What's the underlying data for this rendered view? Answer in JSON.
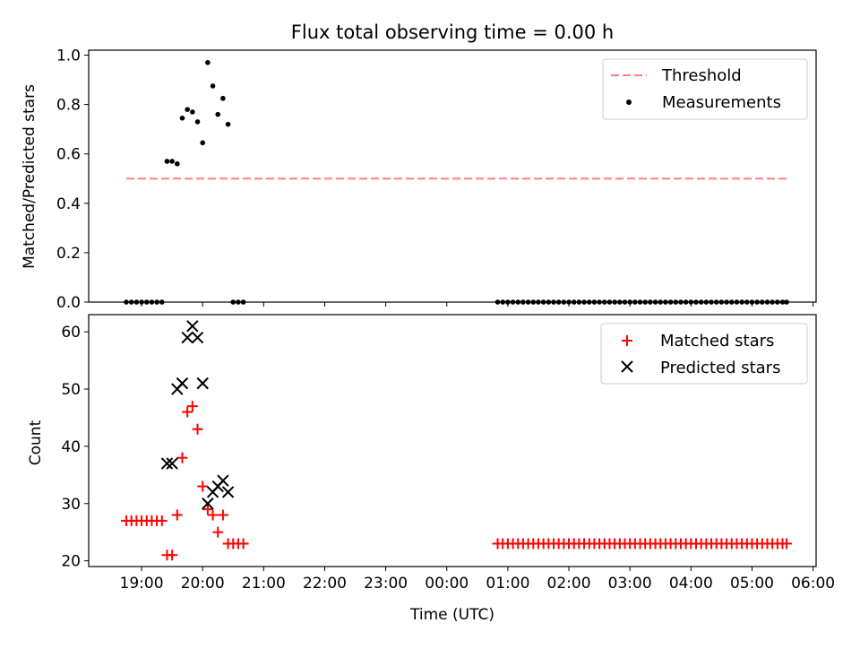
{
  "chart_data": [
    {
      "type": "scatter",
      "title": "Flux total observing time = 0.00 h",
      "xlabel": "",
      "ylabel": "Matched/Predicted stars",
      "xlim": [
        "18:08",
        "06:03"
      ],
      "ylim": [
        0,
        1.02
      ],
      "yticks": [
        0.0,
        0.2,
        0.4,
        0.6,
        0.8,
        1.0
      ],
      "ytick_labels": [
        "0.0",
        "0.2",
        "0.4",
        "0.6",
        "0.8",
        "1.0"
      ],
      "grid": false,
      "legend_position": "top-right",
      "series": [
        {
          "name": "Threshold",
          "kind": "dashed-line",
          "color": "#ff7f7f",
          "x": [
            "18:45",
            "05:34"
          ],
          "y": [
            0.5,
            0.5
          ]
        },
        {
          "name": "Measurements",
          "kind": "dot",
          "color": "#000000",
          "x": [
            "18:45",
            "18:50",
            "18:55",
            "19:00",
            "19:05",
            "19:10",
            "19:15",
            "19:20",
            "19:25",
            "19:30",
            "19:35",
            "19:40",
            "19:45",
            "19:50",
            "19:55",
            "20:00",
            "20:05",
            "20:10",
            "20:15",
            "20:20",
            "20:25",
            "20:30",
            "20:35",
            "20:40",
            "00:50",
            "00:55",
            "01:00",
            "01:05",
            "01:10",
            "01:15",
            "01:20",
            "01:25",
            "01:30",
            "01:35",
            "01:40",
            "01:45",
            "01:50",
            "01:55",
            "02:00",
            "02:05",
            "02:10",
            "02:15",
            "02:20",
            "02:25",
            "02:30",
            "02:35",
            "02:40",
            "02:45",
            "02:50",
            "02:55",
            "03:00",
            "03:05",
            "03:10",
            "03:15",
            "03:20",
            "03:25",
            "03:30",
            "03:35",
            "03:40",
            "03:45",
            "03:50",
            "03:55",
            "04:00",
            "04:05",
            "04:10",
            "04:15",
            "04:20",
            "04:25",
            "04:30",
            "04:35",
            "04:40",
            "04:45",
            "04:50",
            "04:55",
            "05:00",
            "05:05",
            "05:10",
            "05:15",
            "05:20",
            "05:25",
            "05:30",
            "05:34"
          ],
          "y": [
            0,
            0,
            0,
            0,
            0,
            0,
            0,
            0,
            0.57,
            0.57,
            0.56,
            0.745,
            0.78,
            0.77,
            0.73,
            0.645,
            0.97,
            0.875,
            0.76,
            0.825,
            0.72,
            0,
            0,
            0,
            0,
            0,
            0,
            0,
            0,
            0,
            0,
            0,
            0,
            0,
            0,
            0,
            0,
            0,
            0,
            0,
            0,
            0,
            0,
            0,
            0,
            0,
            0,
            0,
            0,
            0,
            0,
            0,
            0,
            0,
            0,
            0,
            0,
            0,
            0,
            0,
            0,
            0,
            0,
            0,
            0,
            0,
            0,
            0,
            0,
            0,
            0,
            0,
            0,
            0,
            0,
            0,
            0,
            0,
            0,
            0,
            0,
            0
          ]
        }
      ]
    },
    {
      "type": "scatter",
      "title": "",
      "xlabel": "Time (UTC)",
      "ylabel": "Count",
      "xlim": [
        "18:08",
        "06:03"
      ],
      "ylim": [
        19,
        63
      ],
      "yticks": [
        20,
        30,
        40,
        50,
        60
      ],
      "ytick_labels": [
        "20",
        "30",
        "40",
        "50",
        "60"
      ],
      "xticks": [
        "19:00",
        "20:00",
        "21:00",
        "22:00",
        "23:00",
        "00:00",
        "01:00",
        "02:00",
        "03:00",
        "04:00",
        "05:00",
        "06:00"
      ],
      "grid": false,
      "legend_position": "top-right",
      "series": [
        {
          "name": "Matched stars",
          "kind": "plus",
          "color": "#ff0000",
          "x": [
            "18:45",
            "18:50",
            "18:55",
            "19:00",
            "19:05",
            "19:10",
            "19:15",
            "19:20",
            "19:25",
            "19:30",
            "19:35",
            "19:40",
            "19:45",
            "19:50",
            "19:55",
            "20:00",
            "20:05",
            "20:10",
            "20:15",
            "20:20",
            "20:25",
            "20:30",
            "20:35",
            "20:40",
            "00:50",
            "00:55",
            "01:00",
            "01:05",
            "01:10",
            "01:15",
            "01:20",
            "01:25",
            "01:30",
            "01:35",
            "01:40",
            "01:45",
            "01:50",
            "01:55",
            "02:00",
            "02:05",
            "02:10",
            "02:15",
            "02:20",
            "02:25",
            "02:30",
            "02:35",
            "02:40",
            "02:45",
            "02:50",
            "02:55",
            "03:00",
            "03:05",
            "03:10",
            "03:15",
            "03:20",
            "03:25",
            "03:30",
            "03:35",
            "03:40",
            "03:45",
            "03:50",
            "03:55",
            "04:00",
            "04:05",
            "04:10",
            "04:15",
            "04:20",
            "04:25",
            "04:30",
            "04:35",
            "04:40",
            "04:45",
            "04:50",
            "04:55",
            "05:00",
            "05:05",
            "05:10",
            "05:15",
            "05:20",
            "05:25",
            "05:30",
            "05:34"
          ],
          "y": [
            27,
            27,
            27,
            27,
            27,
            27,
            27,
            27,
            21,
            21,
            28,
            38,
            46,
            47,
            43,
            33,
            29,
            28,
            25,
            28,
            23,
            23,
            23,
            23,
            23,
            23,
            23,
            23,
            23,
            23,
            23,
            23,
            23,
            23,
            23,
            23,
            23,
            23,
            23,
            23,
            23,
            23,
            23,
            23,
            23,
            23,
            23,
            23,
            23,
            23,
            23,
            23,
            23,
            23,
            23,
            23,
            23,
            23,
            23,
            23,
            23,
            23,
            23,
            23,
            23,
            23,
            23,
            23,
            23,
            23,
            23,
            23,
            23,
            23,
            23,
            23,
            23,
            23,
            23,
            23,
            23,
            23
          ]
        },
        {
          "name": "Predicted stars",
          "kind": "x",
          "color": "#000000",
          "x": [
            "19:25",
            "19:30",
            "19:35",
            "19:40",
            "19:45",
            "19:50",
            "19:55",
            "20:00",
            "20:05",
            "20:10",
            "20:15",
            "20:20",
            "20:25"
          ],
          "y": [
            37,
            37,
            50,
            51,
            59,
            61,
            59,
            51,
            30,
            32,
            33,
            34,
            32
          ]
        }
      ]
    }
  ]
}
